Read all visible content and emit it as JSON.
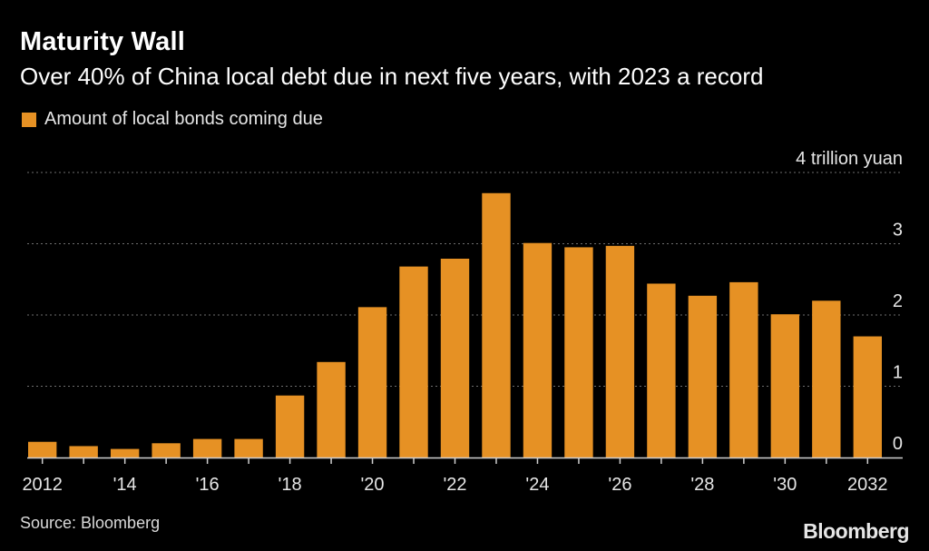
{
  "header": {
    "title": "Maturity Wall",
    "subtitle": "Over 40% of China local debt due in next five years, with 2023 a record"
  },
  "legend": {
    "label": "Amount of local bonds coming due"
  },
  "footer": {
    "source": "Source: Bloomberg",
    "brand": "Bloomberg"
  },
  "colors": {
    "bar": "#E69124",
    "grid": "#6e6e6e",
    "axis": "#cfcfcf",
    "text": "#ffffff",
    "background": "#000000"
  },
  "chart_data": {
    "type": "bar",
    "title": "Maturity Wall",
    "subtitle": "Over 40% of China local debt due in next five years, with 2023 a record",
    "xlabel": "",
    "ylabel": "trillion yuan",
    "unit_label": "4 trillion yuan",
    "ylim": [
      0,
      4
    ],
    "y_ticks": [
      {
        "value": 0,
        "label": "0"
      },
      {
        "value": 1,
        "label": "1"
      },
      {
        "value": 2,
        "label": "2"
      },
      {
        "value": 3,
        "label": "3"
      },
      {
        "value": 4,
        "label": "4 trillion yuan"
      }
    ],
    "categories": [
      "2012",
      "2013",
      "2014",
      "2015",
      "2016",
      "2017",
      "2018",
      "2019",
      "2020",
      "2021",
      "2022",
      "2023",
      "2024",
      "2025",
      "2026",
      "2027",
      "2028",
      "2029",
      "2030",
      "2031",
      "2032"
    ],
    "x_tick_labels": [
      "2012",
      "",
      "'14",
      "",
      "'16",
      "",
      "'18",
      "",
      "'20",
      "",
      "'22",
      "",
      "'24",
      "",
      "'26",
      "",
      "'28",
      "",
      "'30",
      "",
      "2032"
    ],
    "series": [
      {
        "name": "Amount of local bonds coming due",
        "values": [
          0.22,
          0.16,
          0.12,
          0.2,
          0.26,
          0.26,
          0.87,
          1.34,
          2.11,
          2.68,
          2.79,
          3.71,
          3.01,
          2.95,
          2.97,
          2.44,
          2.27,
          2.46,
          2.01,
          2.2,
          1.7
        ]
      }
    ],
    "grid": true,
    "legend_position": "top-left"
  }
}
